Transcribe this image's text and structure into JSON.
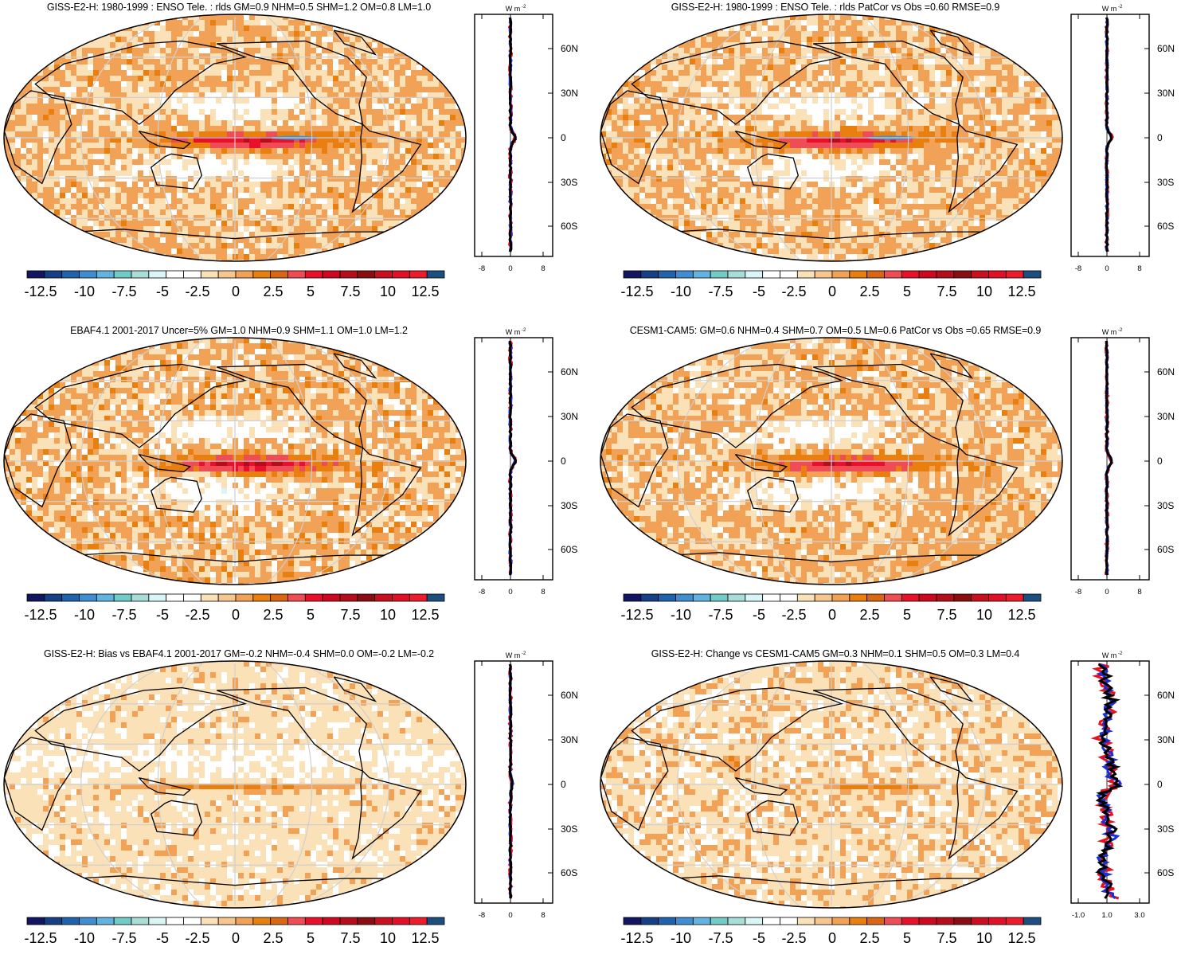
{
  "colorbar": {
    "labels": [
      "-12.5",
      "-10",
      "-7.5",
      "-5",
      "-2.5",
      "0",
      "2.5",
      "5",
      "7.5",
      "10",
      "12.5"
    ],
    "colors": [
      "#121562",
      "#163f85",
      "#1f63ad",
      "#3f8ed0",
      "#63b3e0",
      "#73cbc6",
      "#a8ddd8",
      "#d9f5f7",
      "#ffffff",
      "#ffffff",
      "#fbe1b8",
      "#f6c68e",
      "#f2a257",
      "#e97f0f",
      "#d96615",
      "#ef4d55",
      "#e8102b",
      "#cf0822",
      "#b40d1c",
      "#8a0d12",
      "#c8101f",
      "#e01127",
      "#ec1c2c",
      "#1c4f80"
    ]
  },
  "zonal_units": "W m-2",
  "lat_labels": [
    "60N",
    "30N",
    "0",
    "30S",
    "60S"
  ],
  "panels": [
    {
      "id": "p1",
      "title": "GISS-E2-H: 1980-1999 : ENSO Tele. : rlds GM=0.9 NHM=0.5 SHM=1.2 OM=0.8 LM=1.0",
      "x_ticks": [
        "-8",
        "0",
        "8"
      ],
      "field": "giss",
      "eq_strength": 1.0,
      "blue_core": true
    },
    {
      "id": "p2",
      "title": "GISS-E2-H: 1980-1999 : ENSO Tele. : rlds PatCor vs Obs =0.60 RMSE=0.9",
      "x_ticks": [
        "-8",
        "0",
        "8"
      ],
      "field": "giss",
      "eq_strength": 1.0,
      "blue_core": true
    },
    {
      "id": "p3",
      "title": "EBAF4.1 2001-2017 Uncer=5% GM=1.0 NHM=0.9 SHM=1.1 OM=1.0 LM=1.2",
      "x_ticks": [
        "-8",
        "0",
        "8"
      ],
      "field": "ebaf",
      "eq_strength": 1.1,
      "blue_core": false
    },
    {
      "id": "p4",
      "title": "CESM1-CAM5: GM=0.6 NHM=0.4 SHM=0.7 OM=0.5 LM=0.6 PatCor vs Obs =0.65 RMSE=0.9",
      "x_ticks": [
        "-8",
        "0",
        "8"
      ],
      "field": "cesm",
      "eq_strength": 1.0,
      "blue_core": false
    },
    {
      "id": "p5",
      "title": "GISS-E2-H: Bias vs EBAF4.1 2001-2017 GM=-0.2 NHM=-0.4 SHM=0.0 OM=-0.2 LM=-0.2",
      "x_ticks": [
        "-8",
        "0",
        "8"
      ],
      "field": "bias",
      "eq_strength": 0.5,
      "blue_core": false
    },
    {
      "id": "p6",
      "title": "GISS-E2-H: Change vs CESM1-CAM5 GM=0.3 NHM=0.1 SHM=0.5 OM=0.3 LM=0.4",
      "x_ticks": [
        "-1.0",
        "1.0",
        "3.0"
      ],
      "field": "change",
      "eq_strength": 0.6,
      "blue_core": false
    }
  ],
  "line_colors": {
    "land": "#e8101f",
    "ocean": "#1a2fd6",
    "all": "#000000"
  }
}
